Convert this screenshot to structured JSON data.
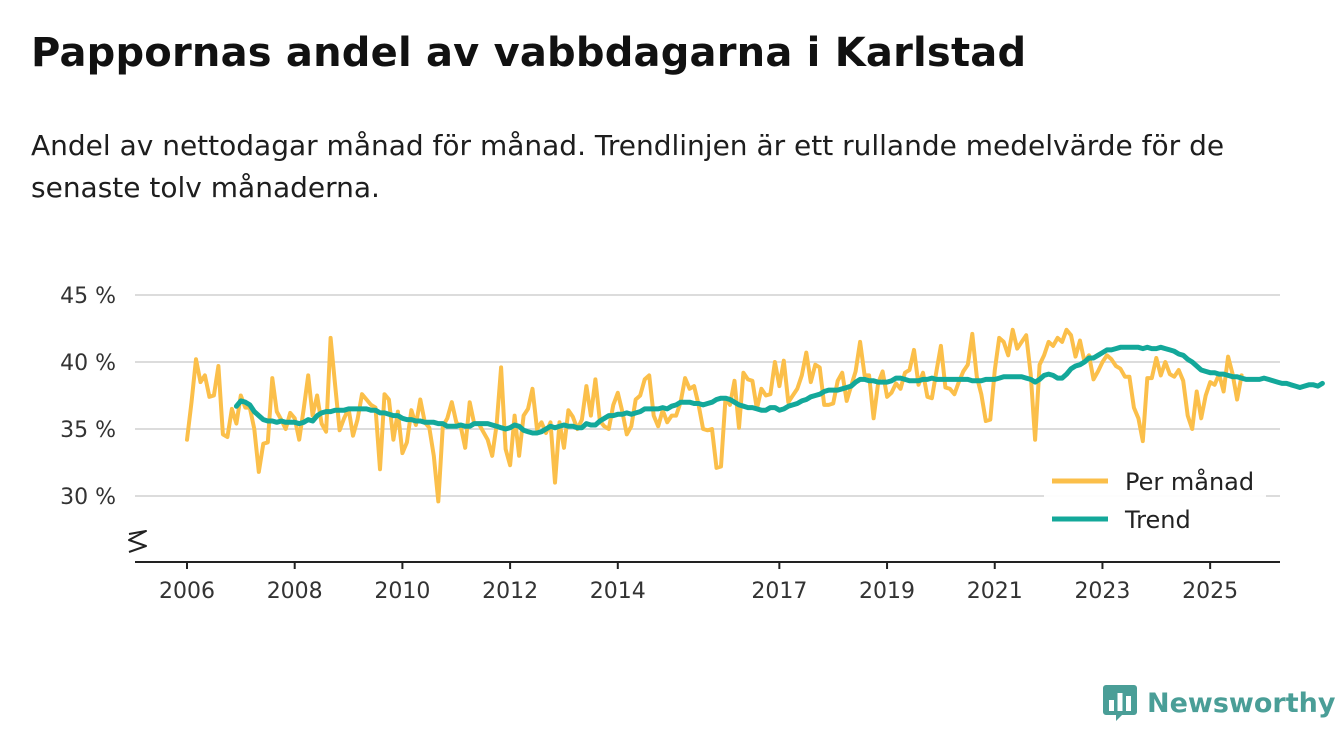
{
  "chart_data": {
    "type": "line",
    "title": "Pappornas andel av vabbdagarna i Karlstad",
    "subtitle": "Andel av nettodagar månad för månad. Trendlinjen är ett rullande medelvärde för de senaste tolv månaderna.",
    "xlabel": "",
    "ylabel": "",
    "xlim": [
      2006,
      2025.45
    ],
    "ylim": [
      25,
      45
    ],
    "y_ticks": [
      30,
      35,
      40,
      45
    ],
    "y_tick_labels": [
      "30 %",
      "35 %",
      "40 %",
      "45 %"
    ],
    "x_ticks": [
      2006,
      2008,
      2010,
      2012,
      2014,
      2017,
      2019,
      2021,
      2023,
      2025
    ],
    "x_tick_labels": [
      "2006",
      "2008",
      "2010",
      "2012",
      "2014",
      "2017",
      "2019",
      "2021",
      "2023",
      "2025"
    ],
    "grid": true,
    "axis_break": true,
    "legend": {
      "placement": "bottom-right",
      "entries": [
        {
          "label": "Per månad",
          "color": "#fbbf4a"
        },
        {
          "label": "Trend",
          "color": "#13a89a"
        }
      ]
    },
    "series": [
      {
        "name": "Per månad",
        "color": "#fbbf4a",
        "start": 2006.0,
        "step_months": 1,
        "values": [
          34.2,
          37.0,
          40.2,
          38.5,
          39.0,
          37.4,
          37.5,
          39.7,
          34.6,
          34.4,
          36.5,
          35.4,
          37.5,
          36.6,
          36.6,
          35.0,
          31.8,
          33.9,
          34.0,
          38.8,
          36.3,
          35.7,
          35.0,
          36.2,
          35.8,
          34.2,
          36.5,
          39.0,
          36.0,
          37.5,
          35.4,
          34.8,
          41.8,
          38.3,
          34.9,
          35.8,
          36.5,
          34.5,
          35.7,
          37.6,
          37.2,
          36.8,
          36.6,
          32.0,
          37.6,
          37.2,
          34.2,
          36.3,
          33.2,
          34.0,
          36.4,
          35.3,
          37.2,
          35.5,
          35.1,
          33.0,
          29.6,
          35.2,
          35.8,
          37.0,
          35.5,
          35.2,
          33.6,
          37.0,
          35.4,
          35.4,
          34.8,
          34.2,
          33.0,
          35.3,
          39.6,
          33.5,
          32.3,
          36.0,
          33.0,
          36.0,
          36.5,
          38.0,
          35.0,
          35.5,
          34.7,
          35.5,
          31.0,
          35.5,
          33.6,
          36.4,
          35.9,
          35.0,
          35.7,
          38.2,
          36.0,
          38.7,
          35.6,
          35.2,
          35.0,
          36.8,
          37.7,
          36.3,
          34.6,
          35.2,
          37.2,
          37.5,
          38.7,
          39.0,
          36.0,
          35.2,
          36.4,
          35.5,
          36.0,
          36.0,
          37.0,
          38.8,
          38.0,
          38.2,
          36.8,
          35.0,
          34.9,
          35.0,
          32.1,
          32.2,
          37.3,
          36.8,
          38.6,
          35.1,
          39.2,
          38.7,
          38.6,
          36.5,
          38.0,
          37.5,
          37.6,
          40.0,
          38.2,
          40.1,
          37.0,
          37.5,
          38.0,
          39.0,
          40.7,
          38.5,
          39.8,
          39.6,
          36.8,
          36.8,
          36.9,
          38.6,
          39.2,
          37.1,
          38.2,
          39.3,
          41.5,
          39.0,
          39.0,
          35.8,
          38.4,
          39.3,
          37.4,
          37.7,
          38.4,
          38.0,
          39.2,
          39.4,
          40.9,
          38.3,
          39.2,
          37.4,
          37.3,
          39.3,
          41.2,
          38.1,
          38.0,
          37.6,
          38.5,
          39.3,
          39.8,
          42.1,
          38.9,
          37.6,
          35.6,
          35.7,
          39.4,
          41.8,
          41.5,
          40.5,
          42.4,
          41.0,
          41.5,
          42.0,
          39.1,
          34.2,
          39.8,
          40.5,
          41.5,
          41.2,
          41.8,
          41.5,
          42.4,
          42.0,
          40.4,
          41.6,
          40.0,
          40.5,
          38.7,
          39.3,
          40.0,
          40.5,
          40.2,
          39.7,
          39.5,
          38.9,
          38.9,
          36.6,
          35.8,
          34.1,
          38.8,
          38.8,
          40.3,
          39.0,
          40.0,
          39.1,
          38.9,
          39.4,
          38.6,
          36.0,
          35.0,
          37.8,
          35.8,
          37.5,
          38.5,
          38.3,
          39.1,
          37.8,
          40.4,
          39.1,
          37.2,
          39.0
        ]
      },
      {
        "name": "Trend",
        "color": "#13a89a",
        "start": 2006.917,
        "step_months": 1,
        "values": [
          36.7,
          37.1,
          37.0,
          36.8,
          36.3,
          36.0,
          35.7,
          35.6,
          35.6,
          35.5,
          35.6,
          35.5,
          35.5,
          35.5,
          35.4,
          35.5,
          35.7,
          35.6,
          36.0,
          36.2,
          36.3,
          36.3,
          36.4,
          36.4,
          36.4,
          36.5,
          36.5,
          36.5,
          36.5,
          36.5,
          36.4,
          36.4,
          36.2,
          36.2,
          36.1,
          36.0,
          36.0,
          35.8,
          35.7,
          35.7,
          35.6,
          35.6,
          35.5,
          35.5,
          35.5,
          35.4,
          35.4,
          35.2,
          35.2,
          35.2,
          35.3,
          35.2,
          35.2,
          35.4,
          35.4,
          35.4,
          35.4,
          35.3,
          35.2,
          35.1,
          35.0,
          35.1,
          35.3,
          35.2,
          34.9,
          34.8,
          34.7,
          34.7,
          34.8,
          35.0,
          35.2,
          35.1,
          35.2,
          35.3,
          35.2,
          35.2,
          35.1,
          35.1,
          35.4,
          35.3,
          35.3,
          35.6,
          35.8,
          36.0,
          36.0,
          36.1,
          36.1,
          36.2,
          36.1,
          36.2,
          36.3,
          36.5,
          36.5,
          36.5,
          36.5,
          36.6,
          36.5,
          36.7,
          36.8,
          37.0,
          37.0,
          37.0,
          36.9,
          36.9,
          36.8,
          36.9,
          37.0,
          37.2,
          37.3,
          37.3,
          37.2,
          37.0,
          36.8,
          36.7,
          36.6,
          36.6,
          36.5,
          36.4,
          36.4,
          36.6,
          36.6,
          36.4,
          36.5,
          36.7,
          36.8,
          36.9,
          37.1,
          37.2,
          37.4,
          37.5,
          37.6,
          37.8,
          37.9,
          37.9,
          37.9,
          38.0,
          38.1,
          38.2,
          38.5,
          38.7,
          38.7,
          38.6,
          38.6,
          38.5,
          38.5,
          38.5,
          38.6,
          38.8,
          38.8,
          38.7,
          38.6,
          38.6,
          38.6,
          38.7,
          38.7,
          38.8,
          38.7,
          38.7,
          38.7,
          38.7,
          38.7,
          38.7,
          38.7,
          38.7,
          38.6,
          38.6,
          38.6,
          38.7,
          38.7,
          38.7,
          38.8,
          38.9,
          38.9,
          38.9,
          38.9,
          38.9,
          38.8,
          38.7,
          38.5,
          38.7,
          39.0,
          39.1,
          39.0,
          38.8,
          38.8,
          39.1,
          39.5,
          39.7,
          39.8,
          40.0,
          40.3,
          40.3,
          40.5,
          40.7,
          40.9,
          40.9,
          41.0,
          41.1,
          41.1,
          41.1,
          41.1,
          41.1,
          41.0,
          41.1,
          41.0,
          41.0,
          41.1,
          41.0,
          40.9,
          40.8,
          40.6,
          40.5,
          40.2,
          40.0,
          39.7,
          39.4,
          39.3,
          39.2,
          39.2,
          39.1,
          39.1,
          39.0,
          38.9,
          38.9,
          38.8,
          38.7,
          38.7,
          38.7,
          38.7,
          38.8,
          38.7,
          38.6,
          38.5,
          38.4,
          38.4,
          38.3,
          38.2,
          38.1,
          38.2,
          38.3,
          38.3,
          38.2,
          38.4
        ]
      }
    ]
  },
  "brand": {
    "name": "Newsworthy",
    "icon": "bar-chart-speech-bubble-icon",
    "color": "#4a9e97"
  }
}
